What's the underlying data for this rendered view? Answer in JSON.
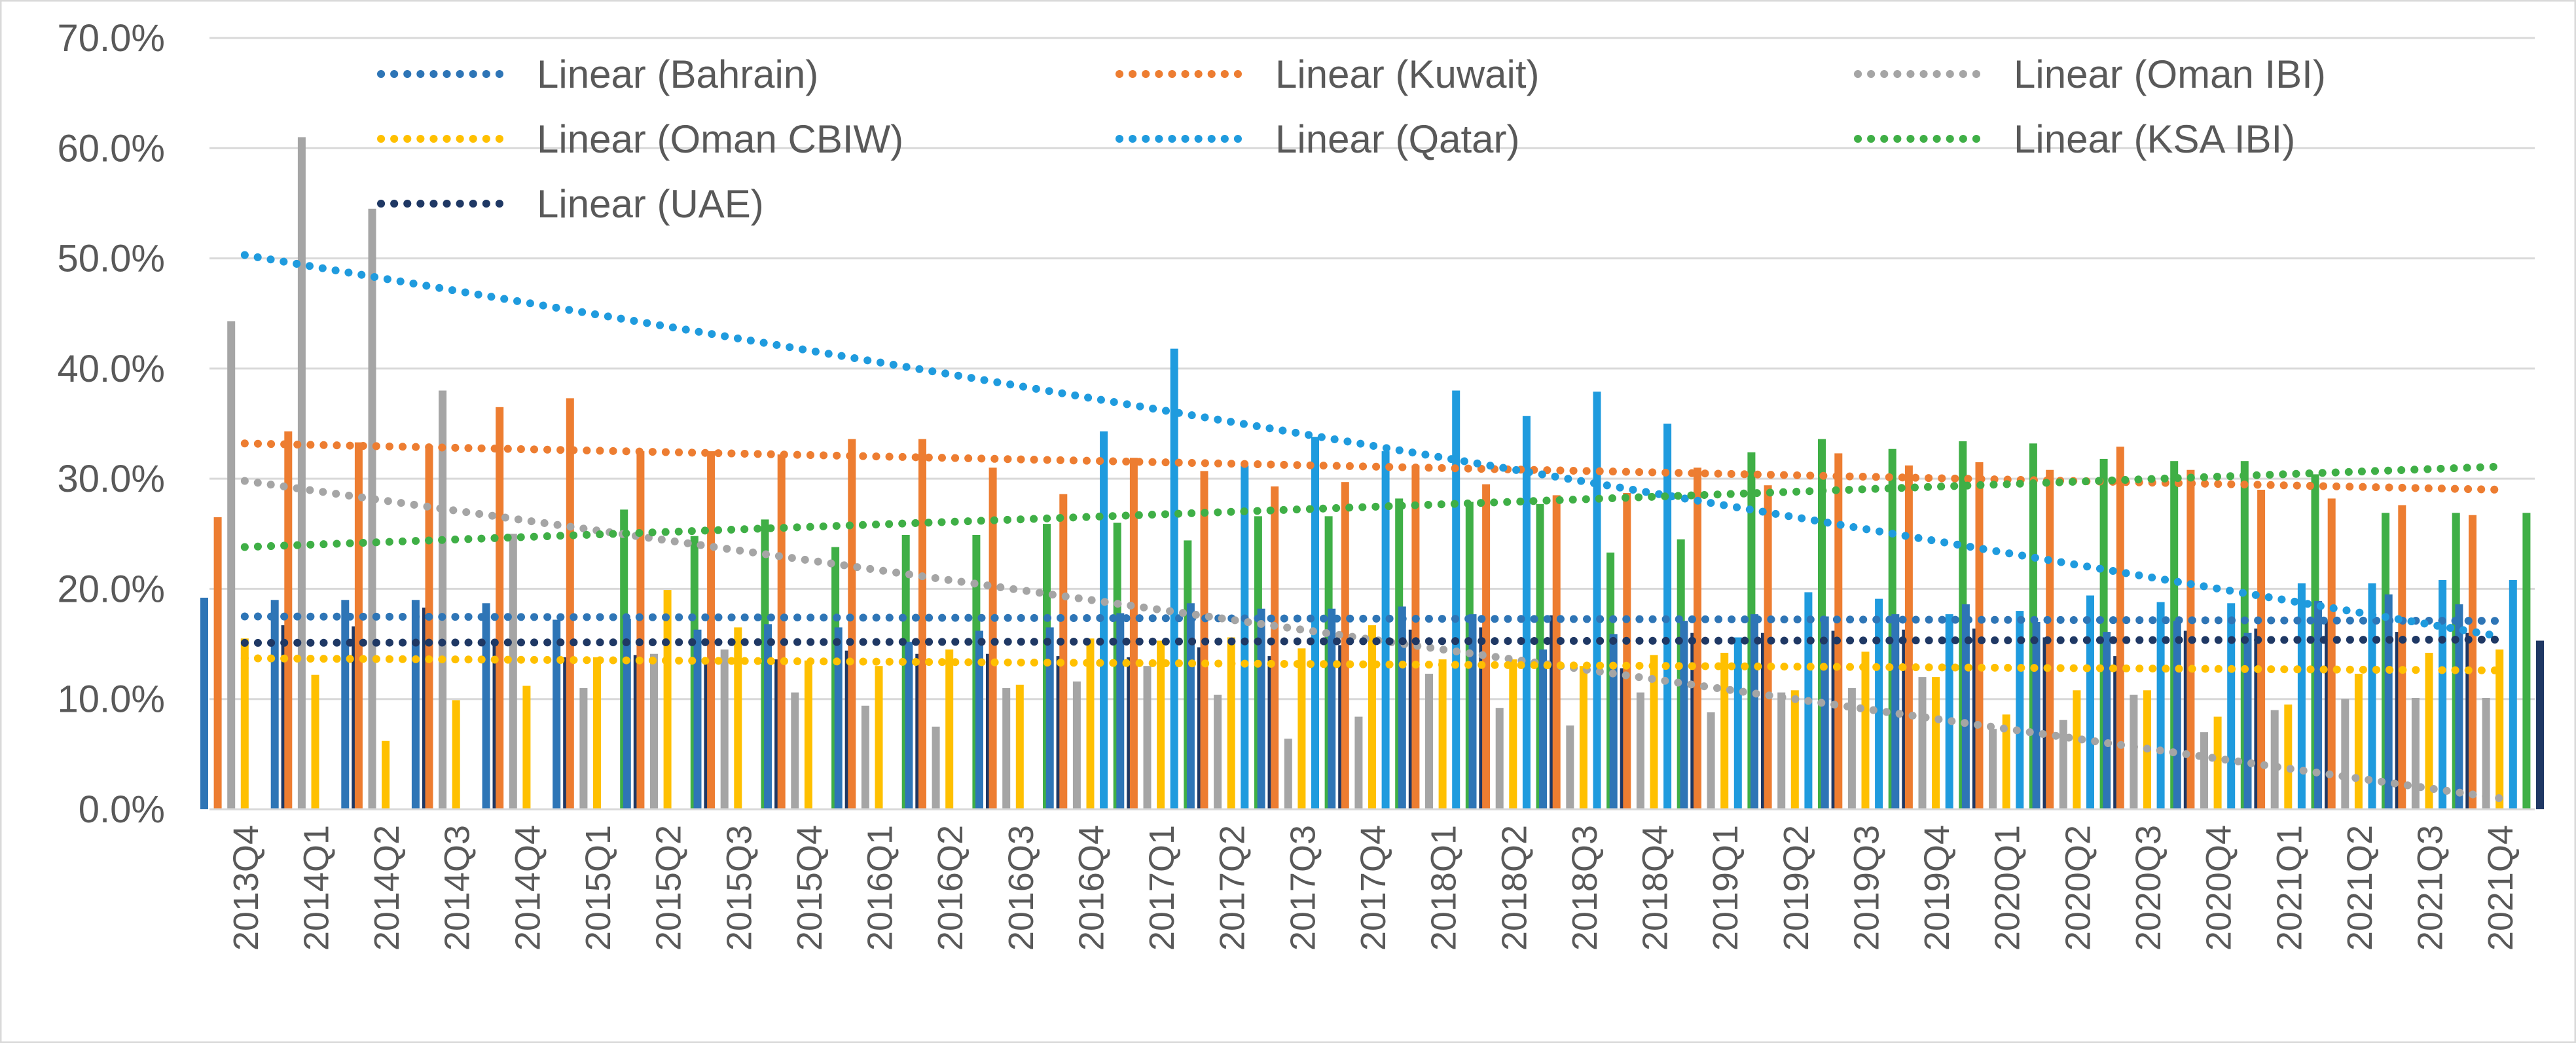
{
  "chart_data": {
    "type": "bar",
    "title": "",
    "xlabel": "",
    "ylabel": "",
    "ylim": [
      0,
      70
    ],
    "y_ticks": [
      "0.0%",
      "10.0%",
      "20.0%",
      "30.0%",
      "40.0%",
      "50.0%",
      "60.0%",
      "70.0%"
    ],
    "grid": true,
    "legend_position": "top",
    "categories": [
      "2013Q4",
      "2014Q1",
      "2014Q2",
      "2014Q3",
      "2014Q4",
      "2015Q1",
      "2015Q2",
      "2015Q3",
      "2015Q4",
      "2016Q1",
      "2016Q2",
      "2016Q3",
      "2016Q4",
      "2017Q1",
      "2017Q2",
      "2017Q3",
      "2017Q4",
      "2018Q1",
      "2018Q2",
      "2018Q3",
      "2018Q4",
      "2019Q1",
      "2019Q2",
      "2019Q3",
      "2019Q4",
      "2020Q1",
      "2020Q2",
      "2020Q3",
      "2020Q4",
      "2021Q1",
      "2021Q2",
      "2021Q3",
      "2021Q4"
    ],
    "series": [
      {
        "name": "Bahrain",
        "color": "#2E75B6",
        "values": [
          19.2,
          19.0,
          19.0,
          19.0,
          18.7,
          17.2,
          17.3,
          16.3,
          16.8,
          16.5,
          15.2,
          16.2,
          16.5,
          17.8,
          18.7,
          18.2,
          18.2,
          18.4,
          17.7,
          14.5,
          15.9,
          17.1,
          17.7,
          17.5,
          17.7,
          18.6,
          17.0,
          16.1,
          17.1,
          16.0,
          18.9,
          19.5,
          18.6
        ]
      },
      {
        "name": "Kuwait",
        "color": "#ED7D31",
        "values": [
          26.5,
          34.3,
          33.3,
          33.0,
          36.5,
          37.3,
          32.5,
          32.5,
          32.2,
          33.6,
          33.6,
          31.0,
          28.6,
          31.9,
          30.7,
          29.3,
          29.7,
          31.2,
          29.5,
          28.5,
          28.7,
          31.0,
          29.4,
          32.3,
          31.2,
          31.5,
          30.8,
          32.9,
          30.8,
          29.0,
          28.2,
          27.6,
          26.7
        ]
      },
      {
        "name": "Oman IBI",
        "color": "#A5A5A5",
        "values": [
          44.3,
          61.0,
          54.5,
          38.0,
          25.0,
          11.0,
          14.1,
          14.5,
          10.6,
          9.4,
          7.5,
          11.0,
          11.6,
          13.0,
          10.4,
          6.4,
          8.4,
          12.3,
          9.2,
          7.6,
          10.6,
          8.8,
          10.6,
          11.0,
          12.0,
          7.3,
          8.1,
          10.4,
          7.0,
          9.0,
          10.0,
          10.1,
          10.1
        ]
      },
      {
        "name": "Oman CBIW",
        "color": "#FFC000",
        "values": [
          15.5,
          12.2,
          6.2,
          9.9,
          11.2,
          13.8,
          19.9,
          16.5,
          13.5,
          13.0,
          14.5,
          11.3,
          15.5,
          15.3,
          15.6,
          14.6,
          16.7,
          13.6,
          13.6,
          13.0,
          14.0,
          14.2,
          10.8,
          14.3,
          12.0,
          8.6,
          10.8,
          10.8,
          8.4,
          9.5,
          12.3,
          14.2,
          14.5
        ]
      },
      {
        "name": "Qatar",
        "color": "#1F9BDE",
        "values": [
          null,
          null,
          null,
          null,
          null,
          null,
          null,
          null,
          null,
          null,
          null,
          null,
          34.3,
          41.8,
          31.2,
          33.8,
          32.5,
          38.0,
          35.7,
          37.9,
          35.0,
          15.6,
          19.7,
          19.1,
          17.7,
          18.0,
          19.4,
          18.8,
          18.7,
          20.5,
          20.5,
          20.8,
          20.8
        ]
      },
      {
        "name": "KSA IBI",
        "color": "#3FAF46",
        "values": [
          null,
          null,
          null,
          null,
          null,
          27.2,
          24.8,
          26.3,
          23.8,
          24.9,
          24.9,
          25.9,
          26.0,
          24.4,
          26.6,
          26.6,
          28.2,
          27.9,
          27.7,
          23.3,
          24.5,
          32.4,
          33.6,
          32.7,
          33.4,
          33.2,
          31.8,
          31.6,
          31.6,
          30.4,
          26.9,
          26.9,
          26.9
        ]
      },
      {
        "name": "UAE",
        "color": "#1F3864",
        "values": [
          16.7,
          16.6,
          18.3,
          15.2,
          13.8,
          14.0,
          13.7,
          13.6,
          14.4,
          14.1,
          14.1,
          13.9,
          13.8,
          14.7,
          13.9,
          14.9,
          16.3,
          16.5,
          17.6,
          12.8,
          16.0,
          16.0,
          16.2,
          16.3,
          16.4,
          15.6,
          13.9,
          16.2,
          16.4,
          17.1,
          16.1,
          16.0,
          15.3
        ]
      }
    ],
    "trendlines": [
      {
        "name": "Linear (Bahrain)",
        "series": "Bahrain",
        "color": "#2E75B6",
        "start": 17.5,
        "end": 17.1
      },
      {
        "name": "Linear (Kuwait)",
        "series": "Kuwait",
        "color": "#ED7D31",
        "start": 33.2,
        "end": 29.0
      },
      {
        "name": "Linear (Oman IBI)",
        "series": "Oman IBI",
        "color": "#A5A5A5",
        "start": 29.8,
        "end": 1.0
      },
      {
        "name": "Linear (Oman CBIW)",
        "series": "Oman CBIW",
        "color": "#FFC000",
        "start": 13.7,
        "end": 12.6
      },
      {
        "name": "Linear (Qatar)",
        "series": "Qatar",
        "color": "#1F9BDE",
        "start": 50.3,
        "end": 15.7
      },
      {
        "name": "Linear (KSA IBI)",
        "series": "KSA IBI",
        "color": "#3FAF46",
        "start": 23.8,
        "end": 31.1
      },
      {
        "name": "Linear (UAE)",
        "series": "UAE",
        "color": "#1F3864",
        "start": 15.1,
        "end": 15.4
      }
    ],
    "legend": {
      "entries": [
        "Linear (Bahrain)",
        "Linear (Kuwait)",
        "Linear (Oman IBI)",
        "Linear (Oman CBIW)",
        "Linear (Qatar)",
        "Linear (KSA IBI)",
        "Linear (UAE)"
      ]
    }
  }
}
